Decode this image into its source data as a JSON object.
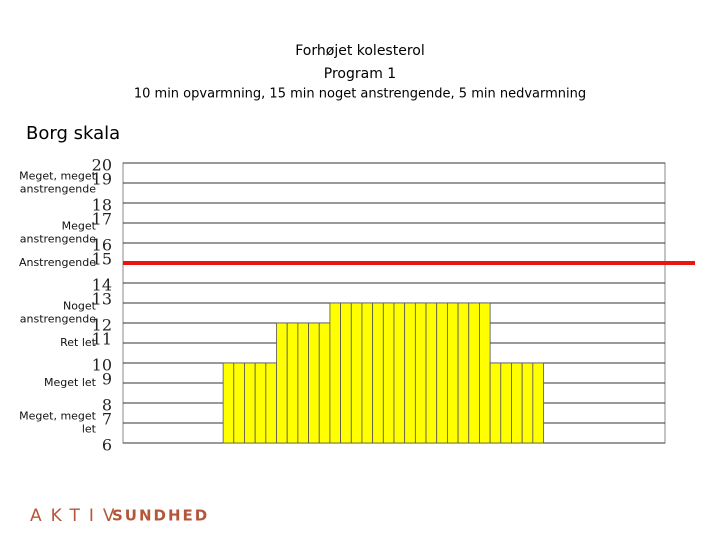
{
  "chart_data": {
    "type": "bar",
    "title": "Forhøjet kolesterol",
    "subtitle_lines": [
      "Program 1",
      "10 min opvarmning, 15 min noget anstrengende, 5 min nedvarmning"
    ],
    "y_axis_label": "Borg skala",
    "categories": [
      null,
      null,
      null,
      null,
      null,
      null,
      null,
      null,
      null,
      null,
      null,
      null,
      null,
      null,
      null,
      null,
      null,
      null,
      null,
      null,
      null,
      null,
      null,
      null,
      null,
      null,
      null,
      null,
      null,
      null,
      null,
      null,
      null,
      null,
      null,
      null,
      null,
      null,
      null,
      null,
      null,
      null,
      null,
      null,
      null,
      null,
      null,
      null,
      null,
      null
    ],
    "values": [
      6,
      6,
      6,
      6,
      6,
      6,
      6,
      6,
      6,
      10,
      10,
      10,
      10,
      10,
      12,
      12,
      12,
      12,
      12,
      13,
      13,
      13,
      13,
      13,
      13,
      13,
      13,
      13,
      13,
      13,
      13,
      13,
      13,
      13,
      10,
      10,
      10,
      10,
      10,
      6,
      6,
      6,
      6,
      6,
      6,
      6,
      6,
      6,
      6,
      6
    ],
    "color": "#ffff00",
    "ylim": [
      6,
      20
    ],
    "yticks": [
      6,
      7,
      8,
      9,
      10,
      11,
      12,
      13,
      14,
      15,
      16,
      17,
      18,
      19,
      20
    ],
    "grid": true,
    "reference_line": {
      "value": 15,
      "color": "#e8160c"
    },
    "borg_labels": [
      {
        "label": "Meget, meget anstrengende",
        "value": 19
      },
      {
        "label": "Meget anstrengende",
        "value": 16.5
      },
      {
        "label": "Anstrengende",
        "value": 15
      },
      {
        "label": "Noget anstrengende",
        "value": 12.5
      },
      {
        "label": "Ret let",
        "value": 11
      },
      {
        "label": "Meget let",
        "value": 9
      },
      {
        "label": "Meget, meget let",
        "value": 7
      }
    ]
  },
  "logo": {
    "brand": "AKTIV",
    "name": "SUNDHED"
  }
}
